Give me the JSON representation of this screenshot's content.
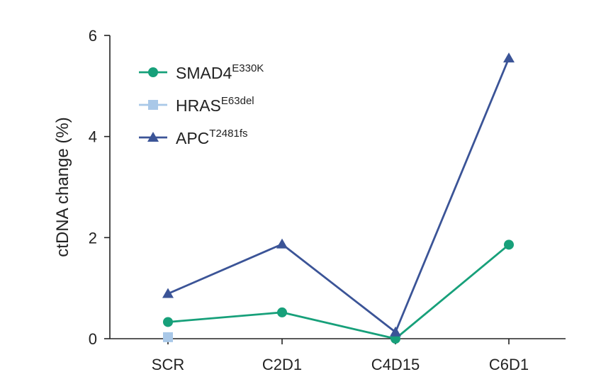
{
  "chart_data": {
    "type": "line",
    "title": "",
    "xlabel": "",
    "ylabel": "ctDNA change (%)",
    "ylim": [
      0,
      6
    ],
    "yticks": [
      0,
      2,
      4,
      6
    ],
    "categories": [
      "SCR",
      "C2D1",
      "C4D15",
      "C6D1"
    ],
    "legend_position": "top-left",
    "series": [
      {
        "name": "SMAD4",
        "superscript": "E330K",
        "marker": "circle",
        "color": "#17a07a",
        "values": [
          0.33,
          0.52,
          0.0,
          1.86
        ]
      },
      {
        "name": "HRAS",
        "superscript": "E63del",
        "marker": "square",
        "color": "#a9c8e8",
        "values": [
          0.03,
          null,
          null,
          null
        ]
      },
      {
        "name": "APC",
        "superscript": "T2481fs",
        "marker": "triangle",
        "color": "#3b5497",
        "values": [
          0.89,
          1.87,
          0.13,
          5.55
        ]
      }
    ]
  }
}
